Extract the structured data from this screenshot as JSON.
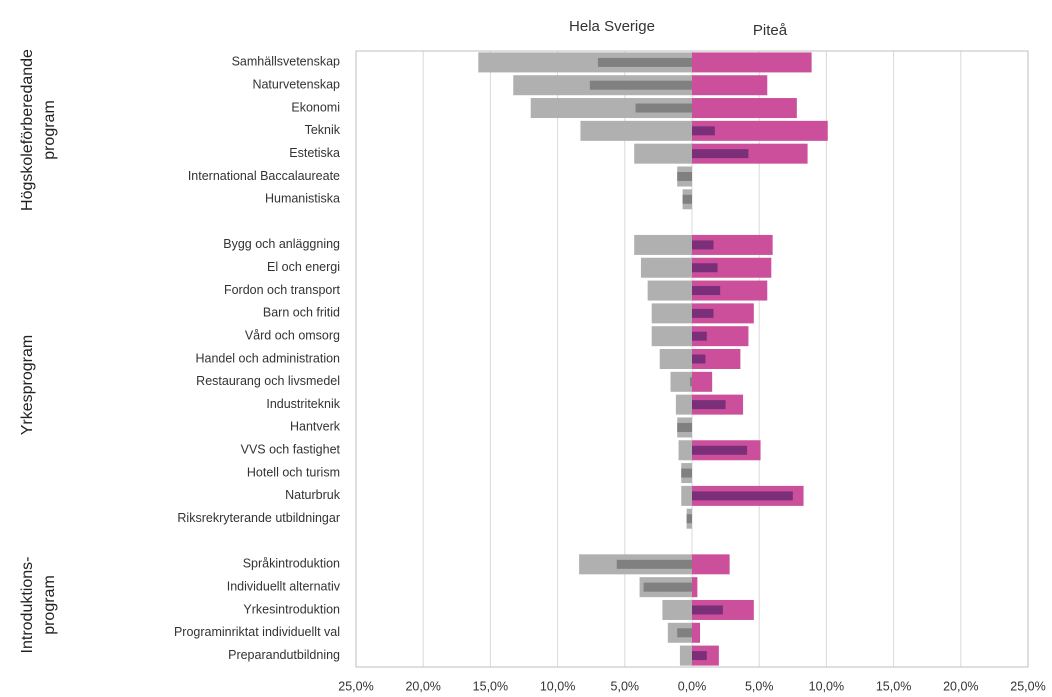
{
  "chart_data": {
    "type": "butterfly-bar",
    "categories": [
      "Samhällsvetenskap",
      "Naturvetenskap",
      "Ekonomi",
      "Teknik",
      "Estetiska",
      "International Baccalaureate",
      "Humanistiska",
      null,
      "Bygg och anläggning",
      "El och energi",
      "Fordon och transport",
      "Barn och fritid",
      "Vård och omsorg",
      "Handel och administration",
      "Restaurang och livsmedel",
      "Industriteknik",
      "Hantverk",
      "VVS och fastighet",
      "Hotell och turism",
      "Naturbruk",
      "Riksrekryterande utbildningar",
      null,
      "Språkintroduktion",
      "Individuellt alternativ",
      "Yrkesintroduktion",
      "Programinriktat individuellt val",
      "Preparandutbildning"
    ],
    "series": [
      {
        "name": "Hela Sverige",
        "color": "#b0b0b0",
        "values": [
          -15.9,
          -13.3,
          -12.0,
          -8.3,
          -4.3,
          -1.1,
          -0.7,
          null,
          -4.3,
          -3.8,
          -3.3,
          -3.0,
          -3.0,
          -2.4,
          -1.6,
          -1.2,
          -1.1,
          -1.0,
          -0.8,
          -0.8,
          -0.4,
          null,
          -8.4,
          -3.9,
          -2.2,
          -1.8,
          -0.9
        ]
      },
      {
        "color": "#808080",
        "values": [
          -7.0,
          -7.6,
          -4.2,
          0,
          0,
          -1.1,
          -0.7,
          null,
          0,
          0,
          0,
          0,
          0,
          0,
          -0.15,
          0,
          -1.1,
          0,
          -0.8,
          0,
          -0.4,
          null,
          -5.6,
          -3.6,
          0,
          -1.1,
          0
        ]
      },
      {
        "name": "Piteå",
        "color": "#cc4f9c",
        "values": [
          8.9,
          5.6,
          7.8,
          10.1,
          8.6,
          0,
          0,
          null,
          6.0,
          5.9,
          5.6,
          4.6,
          4.2,
          3.6,
          1.5,
          3.8,
          0,
          5.1,
          0,
          8.3,
          0,
          null,
          2.8,
          0.4,
          4.6,
          0.6,
          2.0
        ]
      },
      {
        "color": "#7b2f79",
        "values": [
          0,
          0,
          0,
          1.7,
          4.2,
          0,
          0,
          null,
          1.6,
          1.9,
          2.1,
          1.6,
          1.1,
          1.0,
          0,
          2.5,
          0,
          4.1,
          0,
          7.5,
          0,
          null,
          0,
          0,
          2.3,
          0,
          1.1
        ]
      }
    ],
    "groups": [
      [
        "Högskoleförberedande",
        "program"
      ],
      [
        "Yrkesprogram"
      ],
      [
        "Introduktions-",
        "program"
      ]
    ],
    "xlim": [
      -25,
      25
    ],
    "xticks": [
      {
        "value": -25,
        "label": "25,0%"
      },
      {
        "value": -20,
        "label": "20,0%"
      },
      {
        "value": -15,
        "label": "15,0%"
      },
      {
        "value": -10,
        "label": "10,0%"
      },
      {
        "value": -5,
        "label": "5,0%"
      },
      {
        "value": 0,
        "label": "0,0%"
      },
      {
        "value": 5,
        "label": "5,0%"
      },
      {
        "value": 10,
        "label": "10,0%"
      },
      {
        "value": 15,
        "label": "15,0%"
      },
      {
        "value": 20,
        "label": "20,0%"
      },
      {
        "value": 25,
        "label": "25,0%"
      }
    ],
    "grid": true
  }
}
